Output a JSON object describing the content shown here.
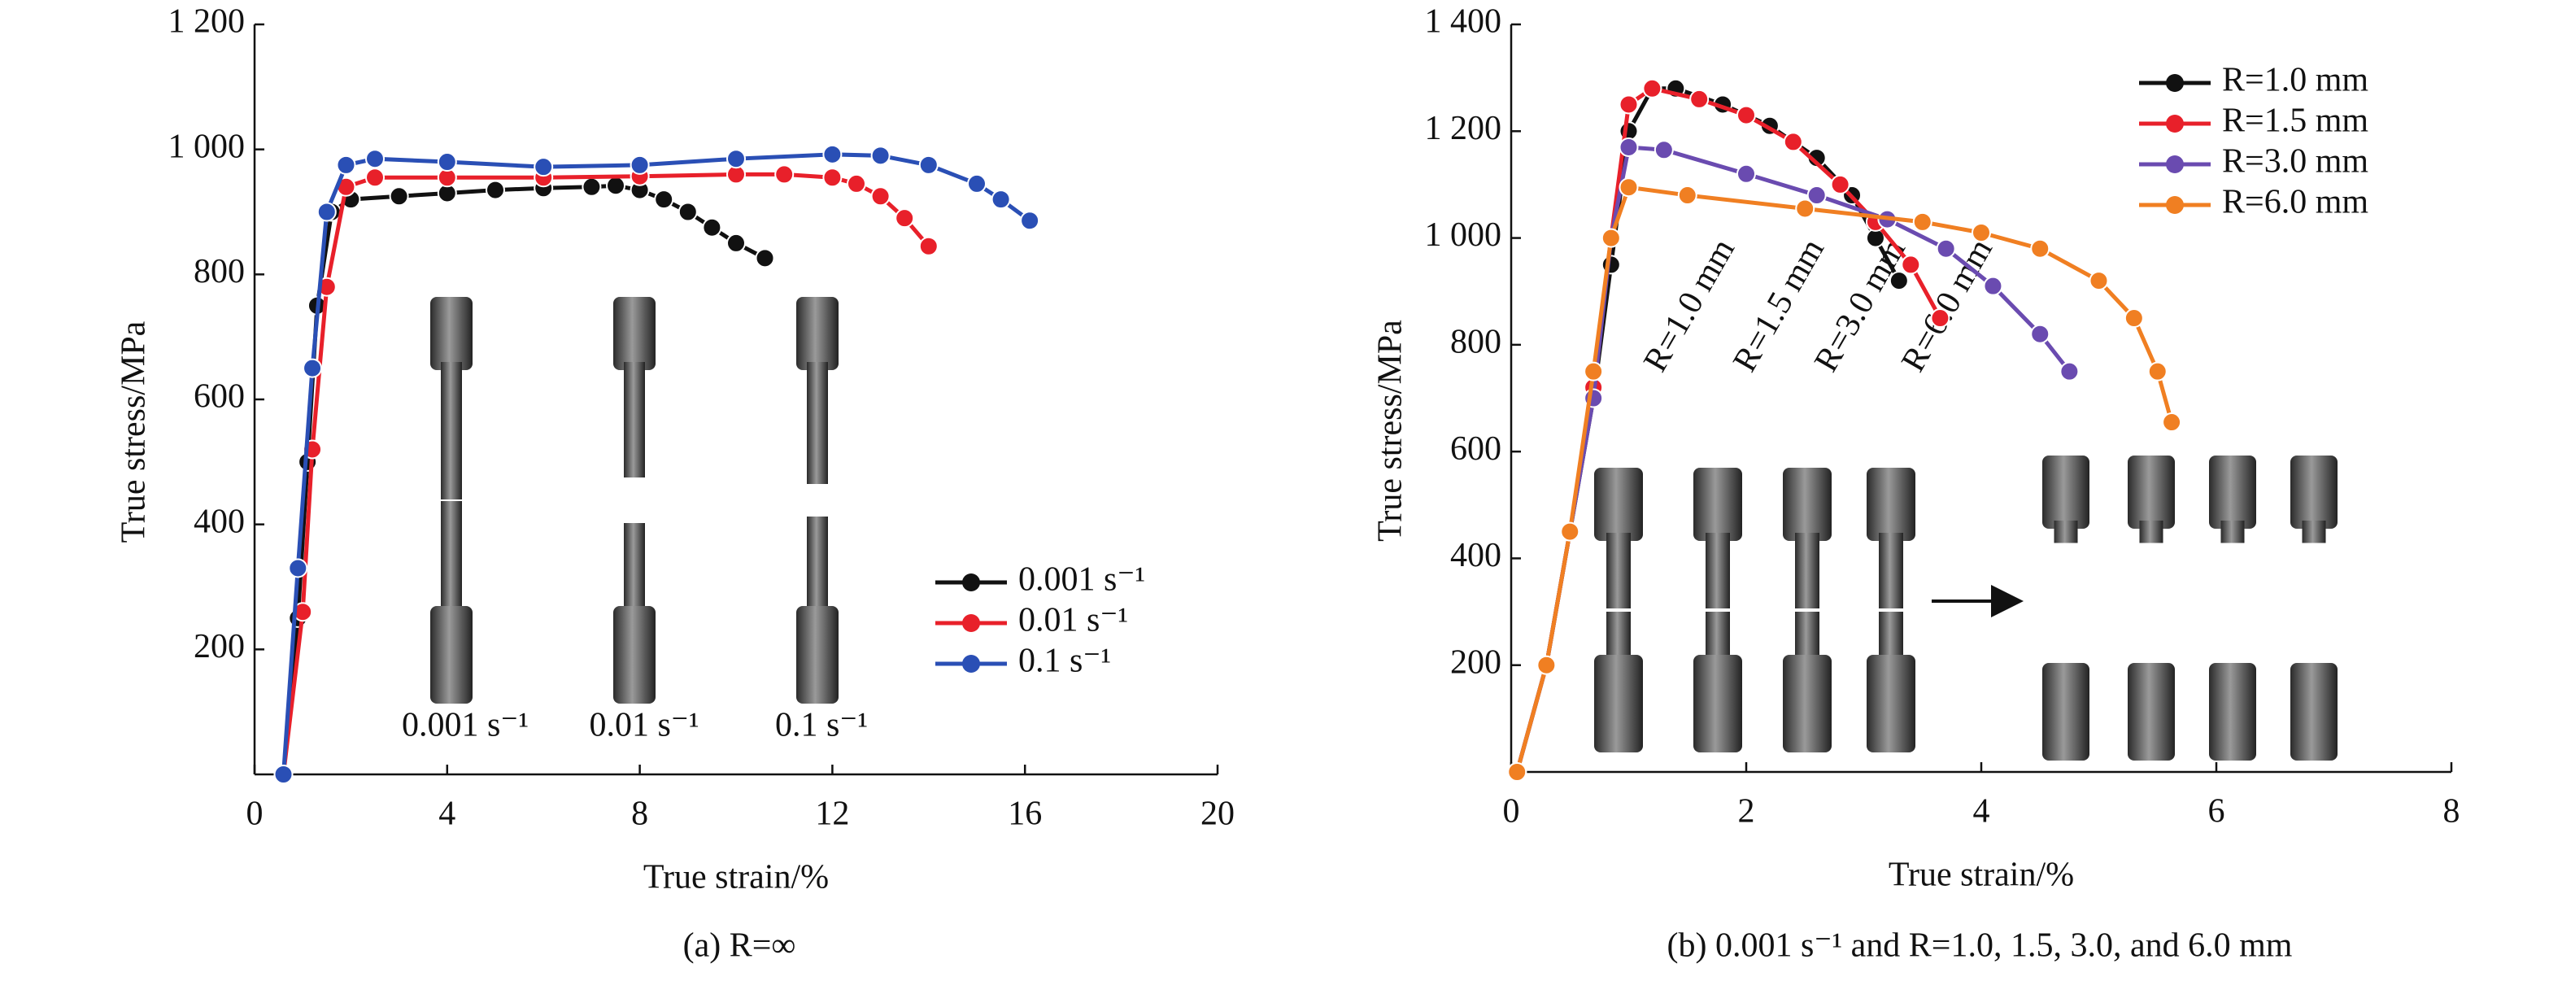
{
  "chart_data": [
    {
      "type": "line",
      "caption": "(a) R=∞",
      "xlabel": "True strain/%",
      "ylabel": "True stress/MPa",
      "xlim": [
        0,
        20
      ],
      "xticks": [
        0,
        4,
        8,
        12,
        16,
        20
      ],
      "ylim": [
        0,
        1200
      ],
      "yticks": [
        200,
        400,
        600,
        800,
        {
          "value": 1000,
          "label": "1 000"
        },
        {
          "value": 1200,
          "label": "1 200"
        }
      ],
      "legend_position": "center right",
      "annotations": [
        "0.001 s⁻¹",
        "0.01 s⁻¹",
        "0.1 s⁻¹"
      ],
      "series": [
        {
          "name": "0.001 s⁻¹",
          "color": "#111111",
          "x": [
            0.6,
            0.9,
            1.1,
            1.3,
            1.6,
            2,
            3,
            4,
            5,
            6,
            7,
            7.5,
            8,
            8.5,
            9,
            9.5,
            10,
            10.6
          ],
          "values": [
            0,
            250,
            500,
            750,
            900,
            920,
            925,
            930,
            935,
            938,
            940,
            942,
            935,
            920,
            900,
            875,
            850,
            826
          ]
        },
        {
          "name": "0.01 s⁻¹",
          "color": "#e8202a",
          "x": [
            0.6,
            1,
            1.2,
            1.5,
            1.9,
            2.5,
            4,
            6,
            8,
            10,
            11,
            12,
            12.5,
            13,
            13.5,
            14
          ],
          "values": [
            0,
            260,
            520,
            780,
            940,
            955,
            955,
            955,
            957,
            960,
            960,
            955,
            945,
            925,
            890,
            845
          ]
        },
        {
          "name": "0.1 s⁻¹",
          "color": "#2a4fb5",
          "x": [
            0.6,
            0.9,
            1.2,
            1.5,
            1.9,
            2.5,
            4,
            6,
            8,
            10,
            12,
            13,
            14,
            15,
            15.5,
            16.1
          ],
          "values": [
            0,
            330,
            650,
            900,
            975,
            985,
            980,
            972,
            975,
            985,
            992,
            990,
            975,
            945,
            920,
            886
          ]
        }
      ]
    },
    {
      "type": "line",
      "caption": "(b) 0.001 s⁻¹ and R=1.0, 1.5, 3.0, and 6.0 mm",
      "xlabel": "True strain/%",
      "ylabel": "True stress/MPa",
      "xlim": [
        0,
        8
      ],
      "xticks": [
        0,
        2,
        4,
        6,
        8
      ],
      "ylim": [
        0,
        1400
      ],
      "yticks": [
        200,
        400,
        600,
        800,
        {
          "value": 1000,
          "label": "1 000"
        },
        {
          "value": 1200,
          "label": "1 200"
        },
        {
          "value": 1400,
          "label": "1 400"
        }
      ],
      "legend_position": "upper right",
      "annotations": [
        "R=1.0 mm",
        "R=1.5 mm",
        "R=3.0 mm",
        "R=6.0 mm"
      ],
      "series": [
        {
          "name": "R=1.0 mm",
          "color": "#111111",
          "x": [
            0.05,
            0.3,
            0.5,
            0.7,
            0.85,
            1.0,
            1.2,
            1.4,
            1.8,
            2.2,
            2.6,
            2.9,
            3.1,
            3.3
          ],
          "values": [
            0,
            200,
            450,
            700,
            950,
            1200,
            1280,
            1280,
            1250,
            1210,
            1150,
            1080,
            1000,
            920
          ]
        },
        {
          "name": "R=1.5 mm",
          "color": "#e8202a",
          "x": [
            0.05,
            0.3,
            0.5,
            0.7,
            0.85,
            1.0,
            1.2,
            1.6,
            2,
            2.4,
            2.8,
            3.1,
            3.4,
            3.65
          ],
          "values": [
            0,
            200,
            450,
            720,
            1000,
            1250,
            1280,
            1260,
            1230,
            1180,
            1100,
            1030,
            950,
            850
          ]
        },
        {
          "name": "R=3.0 mm",
          "color": "#6a4bb0",
          "x": [
            0.05,
            0.3,
            0.5,
            0.7,
            0.85,
            1.0,
            1.3,
            2,
            2.6,
            3.2,
            3.7,
            4.1,
            4.5,
            4.75
          ],
          "values": [
            0,
            200,
            450,
            700,
            1000,
            1170,
            1165,
            1120,
            1080,
            1035,
            980,
            910,
            820,
            750
          ]
        },
        {
          "name": "R=6.0 mm",
          "color": "#f07f22",
          "x": [
            0.05,
            0.3,
            0.5,
            0.7,
            0.85,
            1.0,
            1.5,
            2.5,
            3.5,
            4.0,
            4.5,
            5.0,
            5.3,
            5.5,
            5.62
          ],
          "values": [
            0,
            200,
            450,
            750,
            1000,
            1095,
            1080,
            1055,
            1030,
            1010,
            980,
            920,
            850,
            750,
            655
          ]
        }
      ]
    }
  ]
}
